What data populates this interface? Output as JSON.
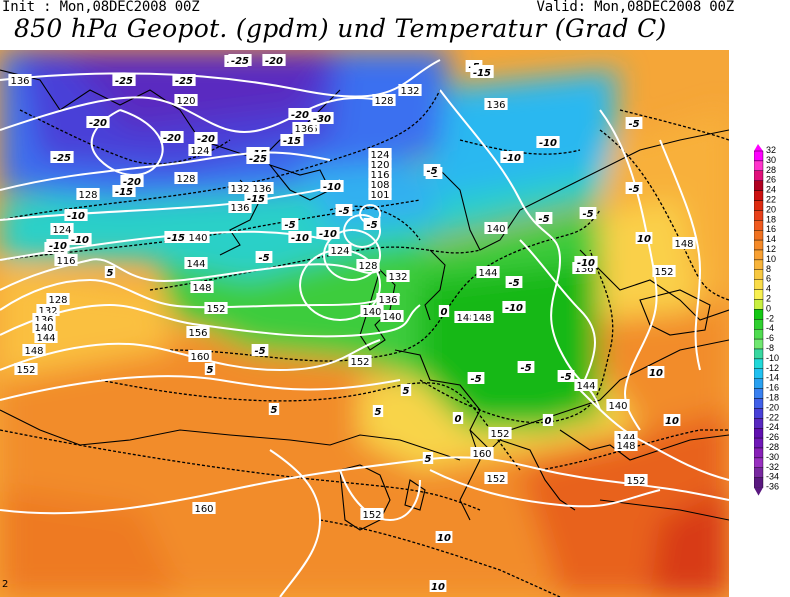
{
  "header": {
    "init_text": "Init : Mon,08DEC2008 00Z",
    "valid_text": "Valid: Mon,08DEC2008 00Z",
    "title": "850 hPa Geopot. (gpdm) und Temperatur (Grad C)"
  },
  "colors": {
    "background": "#ffffff",
    "geopotential_contour": "#ffffff",
    "isotherm": "#000000",
    "coastline": "#000000",
    "label_box": "#ffffff"
  },
  "legend": {
    "values": [
      "32",
      "30",
      "28",
      "26",
      "24",
      "22",
      "20",
      "18",
      "16",
      "14",
      "12",
      "10",
      "8",
      "6",
      "4",
      "2",
      "0",
      "-2",
      "-4",
      "-6",
      "-8",
      "-10",
      "-12",
      "-14",
      "-16",
      "-18",
      "-20",
      "-22",
      "-24",
      "-26",
      "-28",
      "-30",
      "-32",
      "-34",
      "-36"
    ],
    "colors": [
      "#ff00ff",
      "#ff33cc",
      "#e0107a",
      "#b00020",
      "#cc1010",
      "#dd2a10",
      "#e8401a",
      "#f05a1e",
      "#f07220",
      "#f58a28",
      "#f8a032",
      "#f8b43a",
      "#f8c840",
      "#fadc48",
      "#f8f050",
      "#c8f040",
      "#14c814",
      "#30d030",
      "#50dc50",
      "#70e870",
      "#38d8a0",
      "#20d8d8",
      "#20c0f0",
      "#28a0f0",
      "#3880f0",
      "#4060e8",
      "#4840d8",
      "#5828c0",
      "#6010b0",
      "#7018b8",
      "#8820b8",
      "#9830c0",
      "#7828a0",
      "#5a1880"
    ]
  },
  "map": {
    "geopotential_labels": [
      "136",
      "120",
      "124",
      "128",
      "132",
      "136",
      "136",
      "140",
      "144",
      "148",
      "152",
      "156",
      "160",
      "116",
      "120",
      "124",
      "128",
      "132",
      "136",
      "140",
      "144",
      "148",
      "152",
      "160",
      "128",
      "124",
      "120",
      "116",
      "108",
      "101",
      "124",
      "128",
      "132",
      "136",
      "140",
      "148",
      "152",
      "136",
      "140",
      "144",
      "148",
      "152",
      "140",
      "144",
      "148",
      "152",
      "160",
      "152",
      "152",
      "136",
      "128",
      "140",
      "144",
      "136",
      "132",
      "148",
      "152",
      "136",
      "136"
    ],
    "temperature_labels": [
      "-25",
      "-25",
      "-20",
      "-20",
      "-20",
      "-20",
      "-25",
      "-20",
      "-15",
      "-15",
      "-15",
      "-10",
      "-5",
      "-5",
      "-10",
      "-15",
      "-15",
      "-10",
      "-10",
      "-10",
      "-5",
      "-5",
      "-5",
      "-5",
      "-5",
      "-5",
      "-5",
      "-10",
      "-10",
      "-10",
      "-5",
      "0",
      "-5",
      "-5",
      "-15",
      "-10",
      "-5",
      "-5",
      "5",
      "0",
      "0",
      "5",
      "5",
      "5",
      "10",
      "10",
      "10",
      "10",
      "10",
      "5",
      "5",
      "5",
      "-5",
      "-5",
      "-10",
      "-5",
      "-5",
      "-15",
      "-20",
      "-25",
      "-25",
      "-30",
      "-20"
    ],
    "corner_label": "2"
  }
}
